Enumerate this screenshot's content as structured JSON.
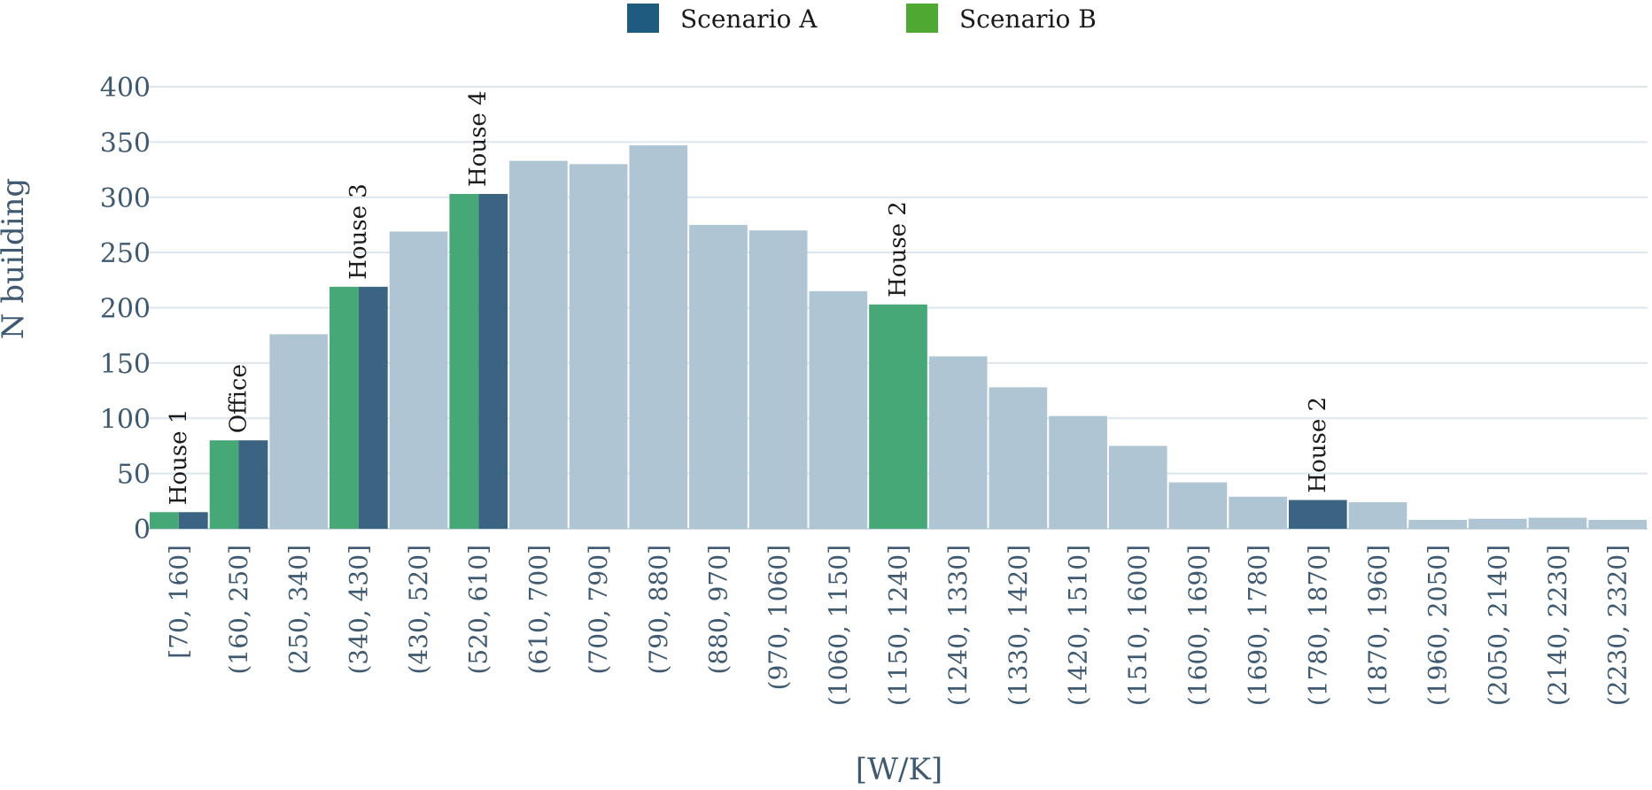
{
  "chart_data": {
    "type": "bar",
    "xlabel": "[W/K]",
    "ylabel": "N building",
    "ylim": [
      0,
      400
    ],
    "yticks": [
      0,
      50,
      100,
      150,
      200,
      250,
      300,
      350,
      400
    ],
    "grid": true,
    "legend": {
      "placement": "top-center",
      "entries": [
        {
          "name": "Scenario A",
          "color": "#1f5b7e"
        },
        {
          "name": "Scenario B",
          "color": "#4ea832"
        }
      ]
    },
    "colors": {
      "base": "#afc5d3",
      "scenario_a": "#3b6482",
      "scenario_b": "#47a877"
    },
    "categories": [
      "[70, 160]",
      "(160, 250]",
      "(250, 340]",
      "(340, 430]",
      "(430, 520]",
      "(520, 610]",
      "(610, 700]",
      "(700, 790]",
      "(790, 880]",
      "(880, 970]",
      "(970, 1060]",
      "(1060, 1150]",
      "(1150, 1240]",
      "(1240, 1330]",
      "(1330, 1420]",
      "(1420, 1510]",
      "(1510, 1600]",
      "(1600, 1690]",
      "(1690, 1780]",
      "(1780, 1870]",
      "(1870, 1960]",
      "(1960, 2050]",
      "(2050, 2140]",
      "(2140, 2230]",
      "(2230, 2320]"
    ],
    "values": [
      15,
      80,
      176,
      219,
      269,
      303,
      333,
      330,
      347,
      275,
      270,
      215,
      203,
      156,
      128,
      102,
      75,
      42,
      29,
      26,
      24,
      8,
      9,
      10,
      8
    ],
    "highlights": [
      {
        "category_index": 0,
        "label": "House 1",
        "scenarios": [
          "B",
          "A"
        ]
      },
      {
        "category_index": 1,
        "label": "Office",
        "scenarios": [
          "B",
          "A"
        ]
      },
      {
        "category_index": 3,
        "label": "House 3",
        "scenarios": [
          "B",
          "A"
        ]
      },
      {
        "category_index": 5,
        "label": "House 4",
        "scenarios": [
          "B",
          "A"
        ]
      },
      {
        "category_index": 12,
        "label": "House 2",
        "scenarios": [
          "B"
        ]
      },
      {
        "category_index": 19,
        "label": "House 2",
        "scenarios": [
          "A"
        ]
      }
    ]
  }
}
